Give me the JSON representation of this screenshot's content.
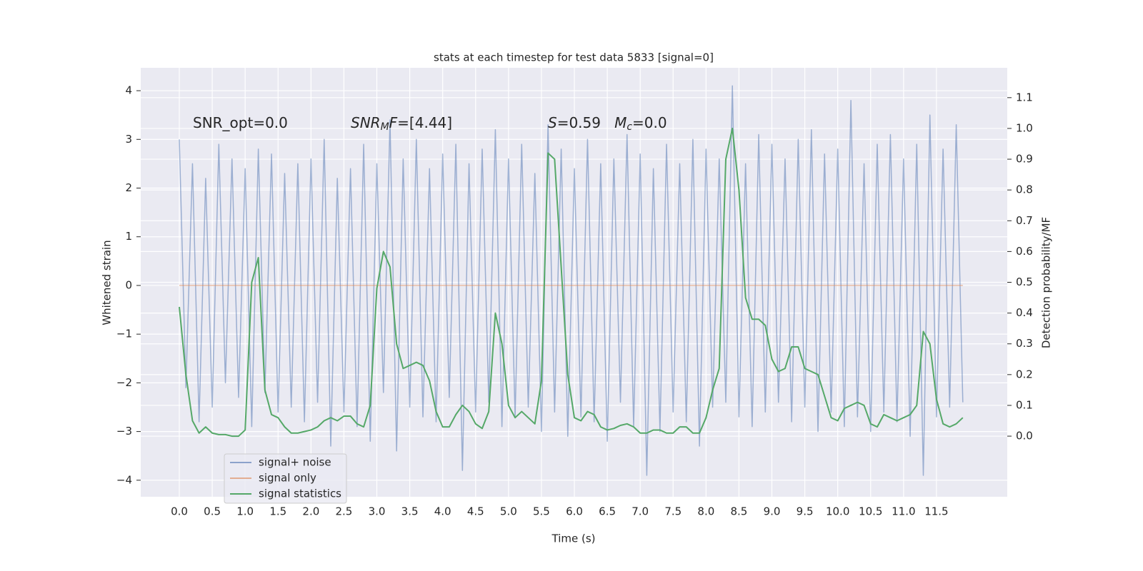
{
  "chart_data": {
    "type": "line",
    "title": "stats at each timestep for test data 5833 [signal=0]",
    "x_label": "Time (s)",
    "y_label": "Whitened strain",
    "y2_label": "Detection probability/MF",
    "grid": true,
    "legend": "lower left",
    "annotations": [
      {
        "segments": [
          {
            "text": "SNR_opt=0.0"
          }
        ]
      },
      {
        "segments": [
          {
            "text": "SNR",
            "italic": true
          },
          {
            "text": "M",
            "italic": true,
            "sub": true
          },
          {
            "text": "F",
            "italic": true
          },
          {
            "text": "=[4.44]"
          }
        ]
      },
      {
        "segments": [
          {
            "text": "S",
            "italic": true
          },
          {
            "text": "=0.59   "
          },
          {
            "text": "M",
            "italic": true
          },
          {
            "text": "c",
            "italic": true,
            "sub": true
          },
          {
            "text": "=0.0"
          }
        ]
      }
    ],
    "xlim": [
      -0.586,
      12.575
    ],
    "ylim": [
      -4.34,
      4.47
    ],
    "y2lim": [
      -0.197,
      1.197
    ],
    "xticks": [
      {
        "value": 0,
        "label": "0.0"
      },
      0.5,
      {
        "value": 1,
        "label": "1.0"
      },
      1.5,
      {
        "value": 2,
        "label": "2.0"
      },
      2.5,
      {
        "value": 3,
        "label": "3.0"
      },
      3.5,
      {
        "value": 4,
        "label": "4.0"
      },
      4.5,
      {
        "value": 5,
        "label": "5.0"
      },
      5.5,
      {
        "value": 6,
        "label": "6.0"
      },
      6.5,
      {
        "value": 7,
        "label": "7.0"
      },
      7.5,
      {
        "value": 8,
        "label": "8.0"
      },
      8.5,
      {
        "value": 9,
        "label": "9.0"
      },
      9.5,
      {
        "value": 10,
        "label": "10.0"
      },
      10.5,
      {
        "value": 11,
        "label": "11.0"
      },
      11.5
    ],
    "yticks": [
      {
        "value": -4,
        "label": "−4"
      },
      {
        "value": -3,
        "label": "−3"
      },
      {
        "value": -2,
        "label": "−2"
      },
      {
        "value": -1,
        "label": "−1"
      },
      0,
      1,
      2,
      3,
      4
    ],
    "y2ticks": [
      {
        "value": 0,
        "label": "0.0"
      },
      0.1,
      0.2,
      0.3,
      0.4,
      0.5,
      0.6,
      0.7,
      0.8,
      0.9,
      {
        "value": 1,
        "label": "1.0"
      },
      1.1
    ],
    "x": [
      0.0,
      0.1,
      0.2,
      0.3,
      0.4,
      0.5,
      0.6,
      0.7,
      0.8,
      0.9,
      1.0,
      1.1,
      1.2,
      1.3,
      1.4,
      1.5,
      1.6,
      1.7,
      1.8,
      1.9,
      2.0,
      2.1,
      2.2,
      2.3,
      2.4,
      2.5,
      2.6,
      2.7,
      2.8,
      2.9,
      3.0,
      3.1,
      3.2,
      3.3,
      3.4,
      3.5,
      3.6,
      3.7,
      3.8,
      3.9,
      4.0,
      4.1,
      4.2,
      4.3,
      4.4,
      4.5,
      4.6,
      4.7,
      4.8,
      4.9,
      5.0,
      5.1,
      5.2,
      5.3,
      5.4,
      5.5,
      5.6,
      5.7,
      5.8,
      5.9,
      6.0,
      6.1,
      6.2,
      6.3,
      6.4,
      6.5,
      6.6,
      6.7,
      6.8,
      6.9,
      7.0,
      7.1,
      7.2,
      7.3,
      7.4,
      7.5,
      7.6,
      7.7,
      7.8,
      7.9,
      8.0,
      8.1,
      8.2,
      8.3,
      8.4,
      8.5,
      8.6,
      8.7,
      8.8,
      8.9,
      9.0,
      9.1,
      9.2,
      9.3,
      9.4,
      9.5,
      9.6,
      9.7,
      9.8,
      9.9,
      10.0,
      10.1,
      10.2,
      10.3,
      10.4,
      10.5,
      10.6,
      10.7,
      10.8,
      10.9,
      11.0,
      11.1,
      11.2,
      11.3,
      11.4,
      11.5,
      11.6,
      11.7,
      11.8,
      11.9
    ],
    "series": [
      {
        "name": "signal+ noise",
        "color": "#4c72b0",
        "values": [
          3.0,
          -2.1,
          2.5,
          -2.8,
          2.2,
          -2.5,
          2.9,
          -2.0,
          2.6,
          -2.3,
          2.4,
          -2.9,
          2.8,
          -2.2,
          2.7,
          -2.6,
          2.3,
          -2.5,
          2.5,
          -2.8,
          2.6,
          -2.4,
          3.0,
          -3.3,
          2.2,
          -2.6,
          2.4,
          -2.9,
          2.9,
          -3.2,
          2.5,
          -2.2,
          3.4,
          -3.4,
          2.6,
          -2.5,
          3.0,
          -2.7,
          2.4,
          -2.8,
          2.7,
          -2.3,
          2.9,
          -3.8,
          2.5,
          -2.6,
          2.8,
          -2.4,
          3.2,
          -2.9,
          2.6,
          -2.7,
          2.9,
          -2.5,
          2.3,
          -3.0,
          3.3,
          -2.6,
          2.8,
          -3.1,
          2.4,
          -2.7,
          3.0,
          -2.8,
          2.5,
          -3.2,
          2.6,
          -2.4,
          3.1,
          -2.9,
          2.7,
          -3.9,
          2.4,
          -3.0,
          2.9,
          -2.6,
          2.5,
          -2.8,
          3.0,
          -3.3,
          2.8,
          -2.5,
          2.6,
          -2.4,
          4.1,
          -2.7,
          2.5,
          -2.9,
          3.1,
          -2.6,
          2.9,
          -2.4,
          2.6,
          -2.8,
          3.0,
          -2.5,
          3.2,
          -3.0,
          2.7,
          -2.6,
          2.8,
          -2.9,
          3.8,
          -2.7,
          2.5,
          -3.0,
          2.9,
          -2.6,
          3.1,
          -2.8,
          2.6,
          -3.1,
          2.9,
          -3.9,
          3.5,
          -2.7,
          2.8,
          -2.5,
          3.3,
          -2.4
        ]
      },
      {
        "name": "signal only",
        "color": "#dd8452",
        "x": [
          0.0,
          11.9
        ],
        "values": [
          0,
          0
        ]
      },
      {
        "name": "signal statistics",
        "color": "#55a868",
        "axis": "y2",
        "values": [
          0.42,
          0.2,
          0.05,
          0.01,
          0.03,
          0.01,
          0.005,
          0.005,
          0.0,
          0.0,
          0.02,
          0.5,
          0.58,
          0.15,
          0.07,
          0.06,
          0.03,
          0.01,
          0.01,
          0.015,
          0.02,
          0.03,
          0.05,
          0.06,
          0.05,
          0.065,
          0.065,
          0.04,
          0.03,
          0.1,
          0.48,
          0.6,
          0.55,
          0.3,
          0.22,
          0.23,
          0.24,
          0.23,
          0.18,
          0.08,
          0.03,
          0.03,
          0.07,
          0.1,
          0.08,
          0.04,
          0.025,
          0.08,
          0.4,
          0.3,
          0.1,
          0.06,
          0.08,
          0.06,
          0.04,
          0.18,
          0.92,
          0.9,
          0.55,
          0.2,
          0.06,
          0.05,
          0.08,
          0.07,
          0.03,
          0.02,
          0.025,
          0.035,
          0.04,
          0.03,
          0.01,
          0.01,
          0.02,
          0.02,
          0.01,
          0.01,
          0.03,
          0.03,
          0.01,
          0.01,
          0.06,
          0.15,
          0.22,
          0.9,
          1.0,
          0.8,
          0.45,
          0.38,
          0.38,
          0.36,
          0.25,
          0.21,
          0.22,
          0.29,
          0.29,
          0.22,
          0.21,
          0.2,
          0.13,
          0.06,
          0.05,
          0.09,
          0.1,
          0.11,
          0.1,
          0.04,
          0.03,
          0.07,
          0.06,
          0.05,
          0.06,
          0.07,
          0.1,
          0.34,
          0.3,
          0.12,
          0.04,
          0.03,
          0.04,
          0.06
        ]
      }
    ]
  }
}
